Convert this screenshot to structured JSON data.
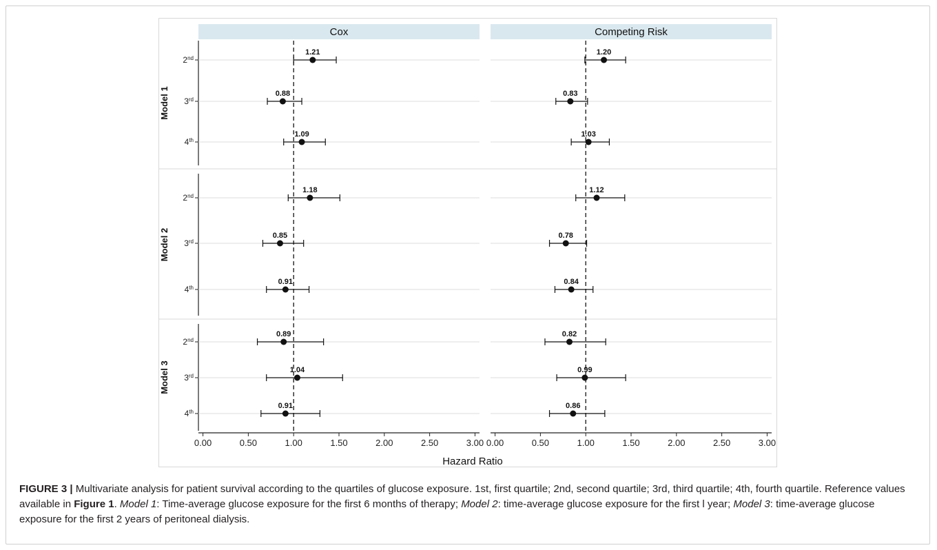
{
  "chart_data": {
    "type": "forest",
    "panels": [
      "Cox",
      "Competing Risk"
    ],
    "models": [
      "Model 1",
      "Model 2",
      "Model 3"
    ],
    "categories": [
      "2nd",
      "3rd",
      "4th"
    ],
    "category_parts": [
      {
        "num": "2",
        "sup": "nd"
      },
      {
        "num": "3",
        "sup": "rd"
      },
      {
        "num": "4",
        "sup": "th"
      }
    ],
    "xlabel": "Hazard Ratio",
    "xlim": [
      -0.05,
      3.05
    ],
    "xticks": [
      "0.00",
      "0.50",
      "1.00",
      "1.50",
      "2.00",
      "2.50",
      "3.00"
    ],
    "reference_line": 1.0,
    "series": [
      {
        "panel": "Cox",
        "model": "Model 1",
        "points": [
          {
            "cat": "2nd",
            "hr": 1.21,
            "lo": 1.0,
            "hi": 1.47,
            "label": "1.21"
          },
          {
            "cat": "3rd",
            "hr": 0.88,
            "lo": 0.71,
            "hi": 1.09,
            "label": "0.88"
          },
          {
            "cat": "4th",
            "hr": 1.09,
            "lo": 0.89,
            "hi": 1.35,
            "label": "1.09"
          }
        ]
      },
      {
        "panel": "Competing Risk",
        "model": "Model 1",
        "points": [
          {
            "cat": "2nd",
            "hr": 1.2,
            "lo": 0.99,
            "hi": 1.44,
            "label": "1.20"
          },
          {
            "cat": "3rd",
            "hr": 0.83,
            "lo": 0.67,
            "hi": 1.02,
            "label": "0.83"
          },
          {
            "cat": "4th",
            "hr": 1.03,
            "lo": 0.84,
            "hi": 1.26,
            "label": "1.03"
          }
        ]
      },
      {
        "panel": "Cox",
        "model": "Model 2",
        "points": [
          {
            "cat": "2nd",
            "hr": 1.18,
            "lo": 0.94,
            "hi": 1.51,
            "label": "1.18"
          },
          {
            "cat": "3rd",
            "hr": 0.85,
            "lo": 0.66,
            "hi": 1.11,
            "label": "0.85"
          },
          {
            "cat": "4th",
            "hr": 0.91,
            "lo": 0.7,
            "hi": 1.17,
            "label": "0.91"
          }
        ]
      },
      {
        "panel": "Competing Risk",
        "model": "Model 2",
        "points": [
          {
            "cat": "2nd",
            "hr": 1.12,
            "lo": 0.89,
            "hi": 1.43,
            "label": "1.12"
          },
          {
            "cat": "3rd",
            "hr": 0.78,
            "lo": 0.6,
            "hi": 1.01,
            "label": "0.78"
          },
          {
            "cat": "4th",
            "hr": 0.84,
            "lo": 0.66,
            "hi": 1.08,
            "label": "0.84"
          }
        ]
      },
      {
        "panel": "Cox",
        "model": "Model 3",
        "points": [
          {
            "cat": "2nd",
            "hr": 0.89,
            "lo": 0.6,
            "hi": 1.33,
            "label": "0.89"
          },
          {
            "cat": "3rd",
            "hr": 1.04,
            "lo": 0.7,
            "hi": 1.54,
            "label": "1.04"
          },
          {
            "cat": "4th",
            "hr": 0.91,
            "lo": 0.64,
            "hi": 1.29,
            "label": "0.91"
          }
        ]
      },
      {
        "panel": "Competing Risk",
        "model": "Model 3",
        "points": [
          {
            "cat": "2nd",
            "hr": 0.82,
            "lo": 0.55,
            "hi": 1.22,
            "label": "0.82"
          },
          {
            "cat": "3rd",
            "hr": 0.99,
            "lo": 0.68,
            "hi": 1.44,
            "label": "0.99"
          },
          {
            "cat": "4th",
            "hr": 0.86,
            "lo": 0.6,
            "hi": 1.21,
            "label": "0.86"
          }
        ]
      }
    ],
    "colors": {
      "strip": "#d9e8ee",
      "marker": "#111111",
      "gridline": "#dcdcdc",
      "reference": "#111111",
      "panel_border": "#d8d8d8"
    }
  },
  "caption": {
    "figure_label": "FIGURE 3 |",
    "text_1": " Multivariate analysis for patient survival according to the quartiles of glucose exposure. 1st, first quartile; 2nd, second quartile; 3rd, third quartile; 4th, fourth quartile. Reference values available in ",
    "figure_ref": "Figure 1",
    "text_2": ". ",
    "model1_name": "Model 1",
    "model1_text": ": Time-average glucose exposure for the first 6 months of therapy; ",
    "model2_name": "Model 2",
    "model2_text": ": time-average glucose exposure for the first l year; ",
    "model3_name": "Model 3",
    "model3_text": ": time-average glucose exposure for the first 2 years of peritoneal dialysis."
  }
}
